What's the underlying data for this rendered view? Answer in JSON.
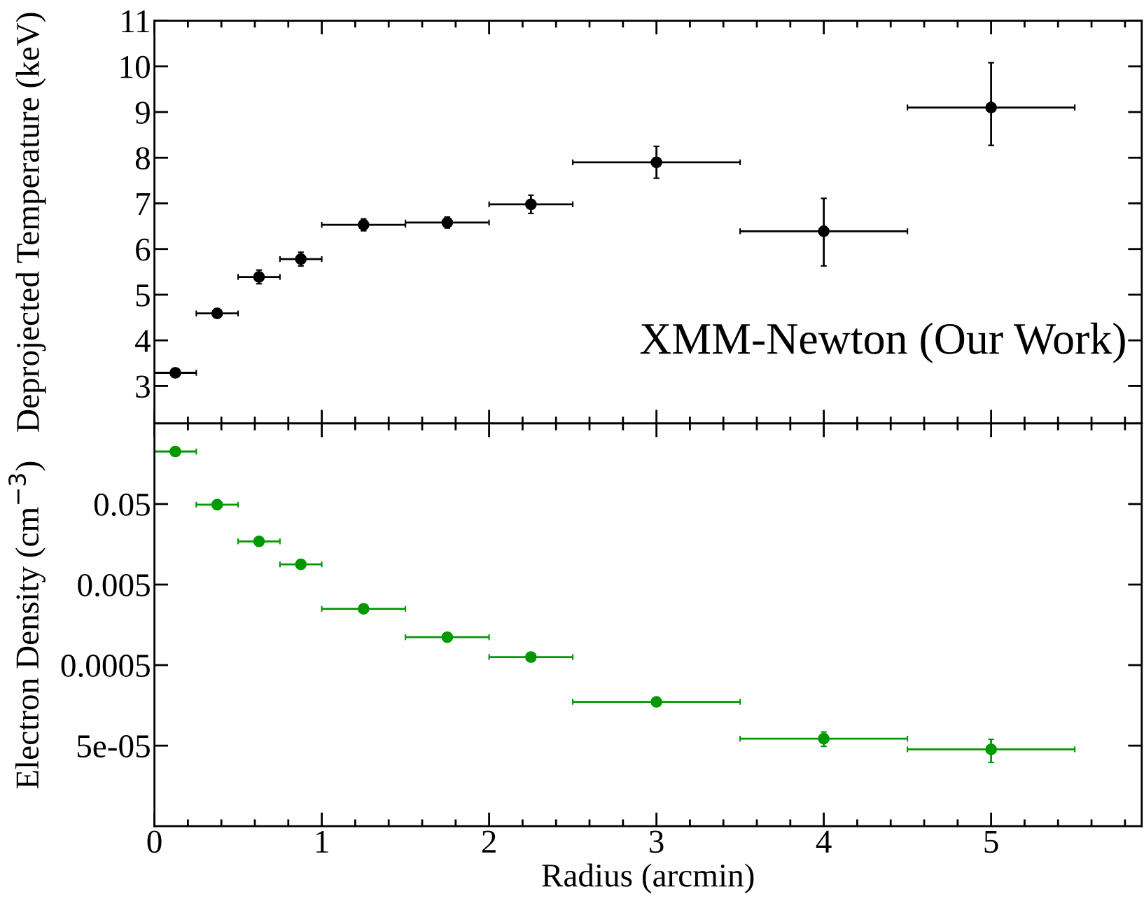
{
  "chart_data": [
    {
      "type": "scatter",
      "ylabel": "Deprojected Temperature (keV)",
      "xlim": [
        0,
        5.9
      ],
      "xticks": [
        0,
        1,
        2,
        3,
        4,
        5
      ],
      "ylim": [
        2.18,
        11
      ],
      "yticks": [
        3,
        4,
        5,
        6,
        7,
        8,
        9,
        10,
        11
      ],
      "tick_labels": "y",
      "marker": "circle",
      "grid": false,
      "legend": false,
      "annotations": [
        "XMM-Newton (Our Work)"
      ],
      "series": [
        {
          "color": "#000000",
          "x": [
            0.125,
            0.375,
            0.625,
            0.875,
            1.25,
            1.75,
            2.25,
            3,
            4,
            5
          ],
          "values": [
            3.29,
            4.59,
            5.39,
            5.78,
            6.53,
            6.58,
            6.98,
            7.9,
            6.39,
            9.1
          ],
          "errors": [
            null,
            null,
            0.15,
            0.15,
            0.13,
            0.12,
            0.2,
            0.35,
            [
              5.63,
              7.11
            ],
            [
              8.27,
              10.08
            ]
          ],
          "xerrors": [
            0.125,
            0.125,
            0.125,
            0.125,
            0.25,
            0.25,
            0.25,
            0.5,
            0.5,
            0.5
          ]
        }
      ]
    },
    {
      "type": "scatter",
      "ylabel": "Electron Density (cm$^{−3}$)",
      "xlabel": "Radius (arcmin)",
      "log": "y",
      "xlim": [
        0,
        5.9
      ],
      "xticks": [
        0,
        1,
        2,
        3,
        4,
        5
      ],
      "ylim": [
        5e-06,
        0.5
      ],
      "yticks": [
        {
          "value": 5e-05,
          "label": "5e-05"
        },
        {
          "value": 0.0005,
          "label": "0.0005"
        },
        {
          "value": 0.005,
          "label": "0.005"
        },
        {
          "value": 0.05,
          "label": "0.05"
        }
      ],
      "marker": "circle",
      "grid": false,
      "legend": false,
      "series": [
        {
          "color": "#009900",
          "x": [
            0.125,
            0.375,
            0.625,
            0.875,
            1.25,
            1.75,
            2.25,
            3,
            4,
            5
          ],
          "values": [
            0.224,
            0.049,
            0.0172,
            0.0089,
            0.0025,
            0.00111,
            0.00063,
            0.000175,
            6.1e-05,
            4.5e-05
          ],
          "errors": [
            null,
            null,
            null,
            null,
            null,
            null,
            null,
            null,
            [
              4.9e-05,
              7.4e-05
            ],
            [
              3.1e-05,
              6e-05
            ]
          ],
          "xerrors": [
            0.125,
            0.125,
            0.125,
            0.125,
            0.25,
            0.25,
            0.25,
            0.5,
            0.5,
            0.5
          ]
        }
      ]
    }
  ]
}
